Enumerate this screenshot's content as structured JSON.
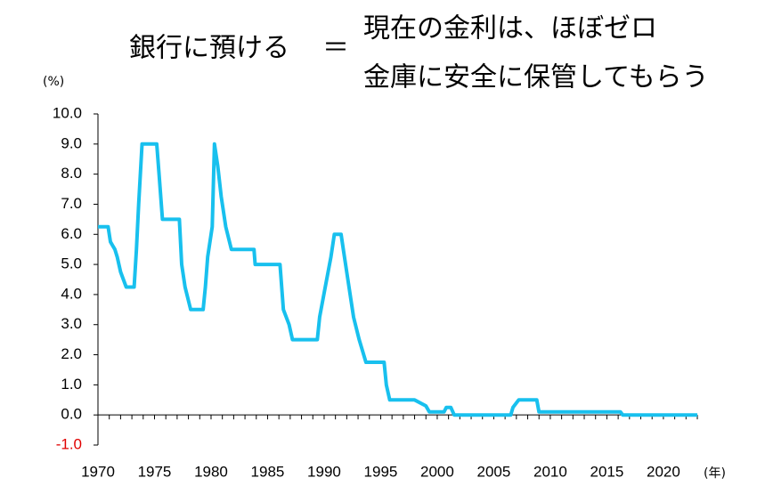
{
  "chart_data": {
    "type": "line",
    "title": {
      "left": "銀行に預ける",
      "sign": "＝",
      "right": [
        "現在の金利は、ほぼゼロ",
        "金庫に安全に保管してもらう"
      ]
    },
    "y_label": "(%)",
    "x_label": "(年)",
    "color": "#18c0ee",
    "negative_tick_color": "#e00000",
    "grid": false,
    "xlim": [
      1970,
      2023
    ],
    "xticks": [
      1970,
      1975,
      1980,
      1985,
      1990,
      1995,
      2000,
      2005,
      2010,
      2015,
      2020
    ],
    "ylim": [
      -1,
      10
    ],
    "yticks": [
      {
        "value": 10,
        "label": "10.0"
      },
      {
        "value": 9,
        "label": "9.0"
      },
      {
        "value": 8,
        "label": "8.0"
      },
      {
        "value": 7,
        "label": "7.0"
      },
      {
        "value": 6,
        "label": "6.0"
      },
      {
        "value": 5,
        "label": "5.0"
      },
      {
        "value": 4,
        "label": "4.0"
      },
      {
        "value": 3,
        "label": "3.0"
      },
      {
        "value": 2,
        "label": "2.0"
      },
      {
        "value": 1,
        "label": "1.0"
      },
      {
        "value": 0,
        "label": "0.0"
      },
      {
        "value": -1,
        "label": "-1.0"
      }
    ],
    "x": [
      1970,
      1970.9,
      1971.1,
      1971.5,
      1971.7,
      1972,
      1972.5,
      1973.2,
      1973.4,
      1973.6,
      1973.9,
      1975.2,
      1975.4,
      1975.7,
      1977.2,
      1977.4,
      1977.7,
      1978.2,
      1979.3,
      1979.5,
      1979.7,
      1980.1,
      1980.3,
      1980.6,
      1980.9,
      1981.3,
      1981.8,
      1983.8,
      1983.9,
      1986.1,
      1986.4,
      1986.9,
      1987.2,
      1989.4,
      1989.6,
      1990.1,
      1990.6,
      1990.9,
      1991.5,
      1991.7,
      1992.1,
      1992.6,
      1993.1,
      1993.7,
      1995.3,
      1995.5,
      1995.8,
      1998,
      1999,
      1999.3,
      2000.6,
      2000.8,
      2001.2,
      2001.5,
      2006.5,
      2006.7,
      2007.2,
      2008.8,
      2009,
      2016.2,
      2016.4,
      2023
    ],
    "values": [
      6.25,
      6.25,
      5.75,
      5.5,
      5.25,
      4.75,
      4.25,
      4.25,
      5.5,
      7.0,
      9.0,
      9.0,
      8.0,
      6.5,
      6.5,
      5.0,
      4.25,
      3.5,
      3.5,
      4.25,
      5.25,
      6.25,
      9.0,
      8.25,
      7.25,
      6.25,
      5.5,
      5.5,
      5.0,
      5.0,
      3.5,
      3.0,
      2.5,
      2.5,
      3.25,
      4.25,
      5.25,
      6.0,
      6.0,
      5.5,
      4.5,
      3.25,
      2.5,
      1.75,
      1.75,
      1.0,
      0.5,
      0.5,
      0.3,
      0.1,
      0.1,
      0.25,
      0.25,
      0.0,
      0.0,
      0.25,
      0.5,
      0.5,
      0.1,
      0.1,
      0.0,
      0.0
    ]
  }
}
